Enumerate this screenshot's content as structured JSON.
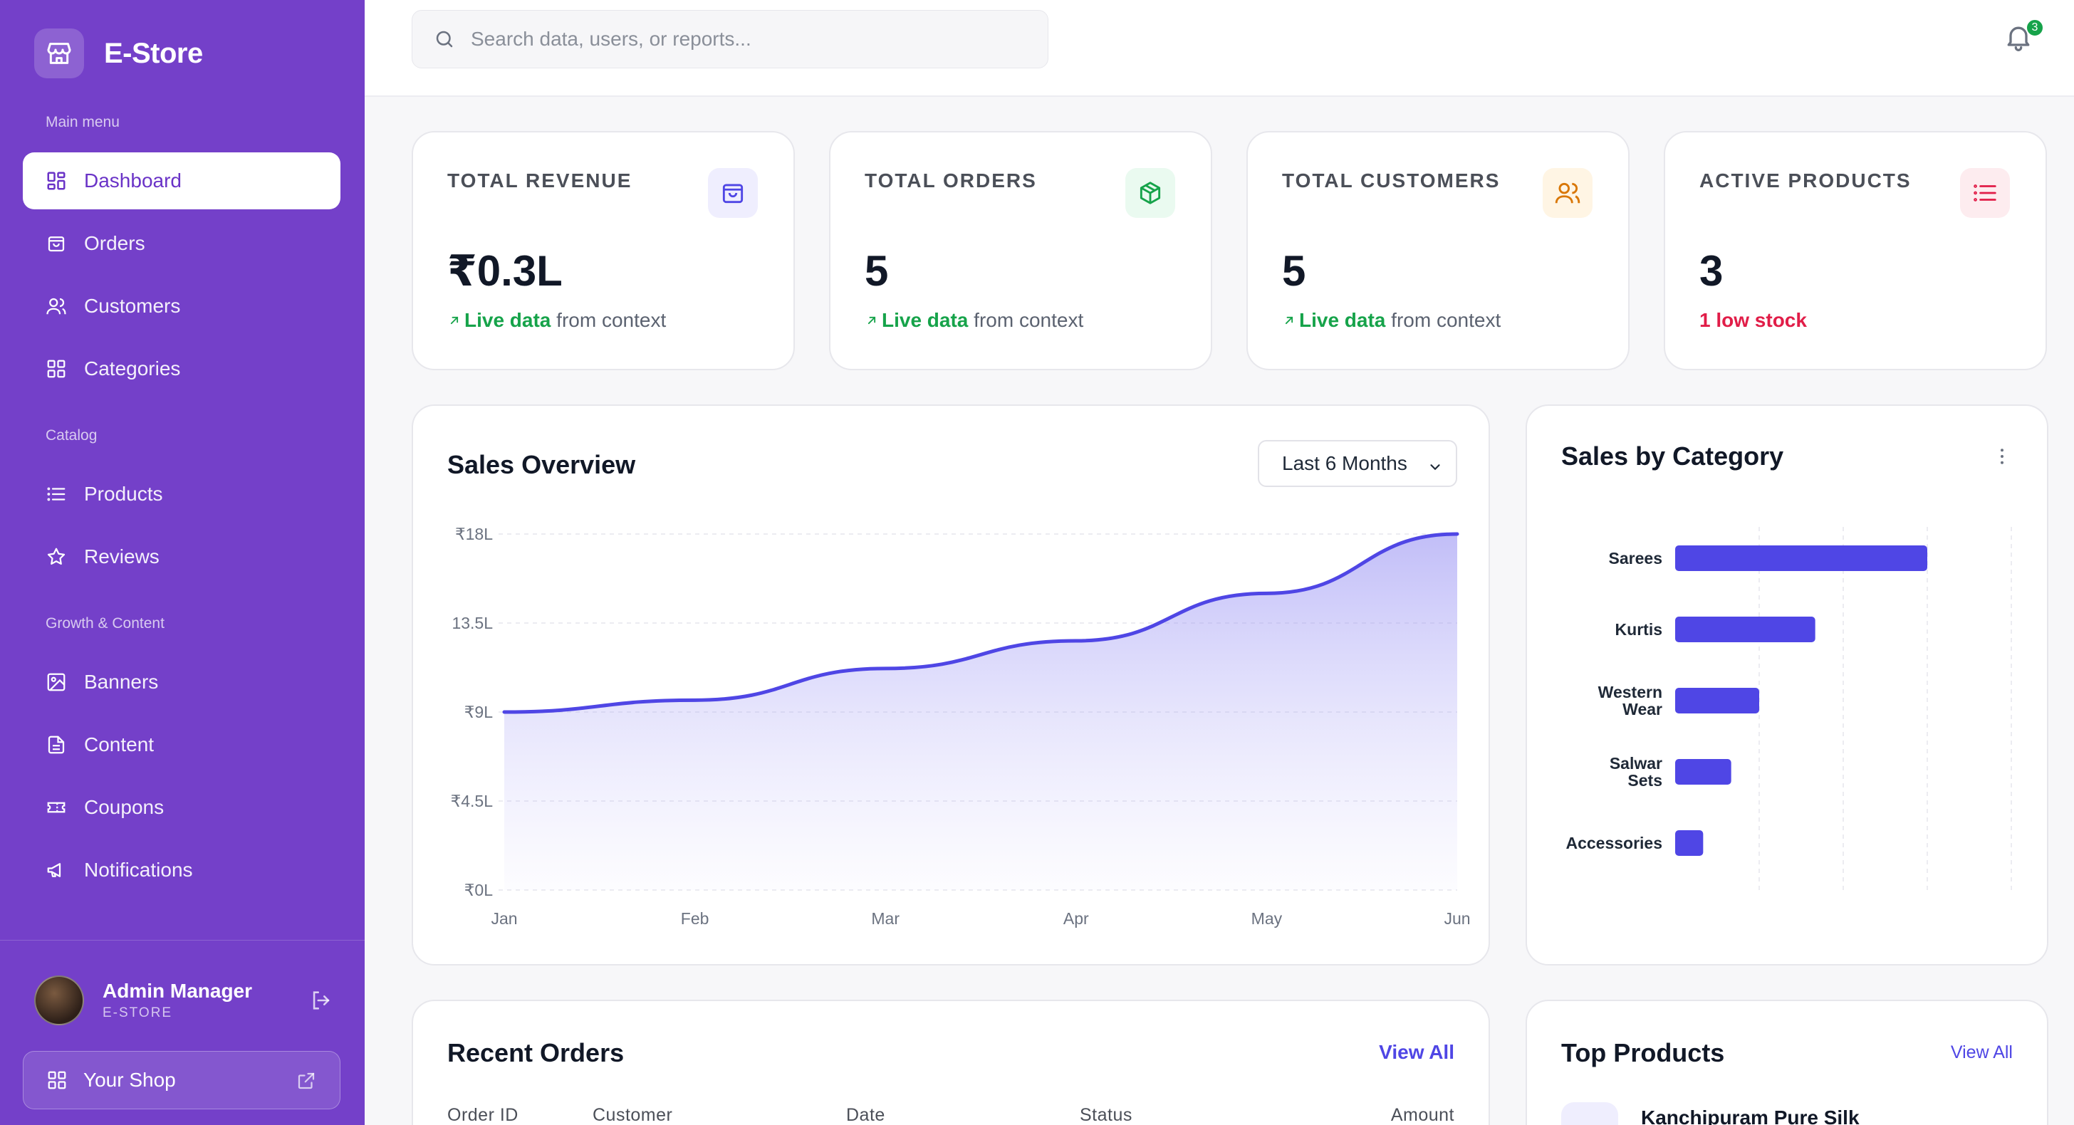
{
  "brand": {
    "name": "E-Store",
    "icon": "store-icon"
  },
  "sidebar": {
    "sections": [
      "Main menu",
      "Catalog",
      "Growth & Content"
    ],
    "items": [
      {
        "label": "Dashboard",
        "icon": "dashboard-icon",
        "active": true
      },
      {
        "label": "Orders",
        "icon": "shopping-bag-icon"
      },
      {
        "label": "Customers",
        "icon": "users-icon"
      },
      {
        "label": "Categories",
        "icon": "grid-icon"
      },
      {
        "label": "Products",
        "icon": "list-icon"
      },
      {
        "label": "Reviews",
        "icon": "star-icon"
      },
      {
        "label": "Banners",
        "icon": "image-icon"
      },
      {
        "label": "Content",
        "icon": "file-icon"
      },
      {
        "label": "Coupons",
        "icon": "ticket-icon"
      },
      {
        "label": "Notifications",
        "icon": "megaphone-icon"
      }
    ],
    "user": {
      "name": "Admin Manager",
      "role": "E-STORE"
    },
    "shop_button": "Your Shop"
  },
  "header": {
    "search_placeholder": "Search data, users, or reports...",
    "notification_count": "3"
  },
  "stats": [
    {
      "label": "TOTAL REVENUE",
      "value": "₹0.3L",
      "sub_highlight": "Live data",
      "sub_rest": " from context",
      "icon": "shopping-bag-icon",
      "accent": "#4f46e5",
      "accent_bg": "#efeefe"
    },
    {
      "label": "TOTAL ORDERS",
      "value": "5",
      "sub_highlight": "Live data",
      "sub_rest": " from context",
      "icon": "box-icon",
      "accent": "#16a34a",
      "accent_bg": "#eafaf0"
    },
    {
      "label": "TOTAL CUSTOMERS",
      "value": "5",
      "sub_highlight": "Live data",
      "sub_rest": " from context",
      "icon": "users-icon",
      "accent": "#d97706",
      "accent_bg": "#fff5e4"
    },
    {
      "label": "ACTIVE PRODUCTS",
      "value": "3",
      "sub_alert": "1 low stock",
      "icon": "list-icon",
      "accent": "#e11d48",
      "accent_bg": "#fdecef"
    }
  ],
  "sales_overview": {
    "title": "Sales Overview",
    "range_select": "Last 6 Months"
  },
  "sales_by_category": {
    "title": "Sales by Category"
  },
  "recent_orders": {
    "title": "Recent Orders",
    "view_all": "View All",
    "columns": [
      "Order ID",
      "Customer",
      "Date",
      "Status",
      "Amount"
    ]
  },
  "top_products": {
    "title": "Top Products",
    "view_all": "View All",
    "first_item": "Kanchipuram Pure Silk"
  },
  "chart_data": [
    {
      "type": "area",
      "x": [
        "Jan",
        "Feb",
        "Mar",
        "Apr",
        "May",
        "Jun"
      ],
      "series": [
        {
          "values": [
            9.0,
            9.6,
            11.2,
            12.6,
            15.0,
            18.0
          ]
        }
      ],
      "y_ticks": [
        "₹0L",
        "₹4.5L",
        "₹9L",
        "13.5L",
        "₹18L"
      ],
      "ylim": [
        0,
        18
      ],
      "grid": true,
      "colors": {
        "line": "#4f46e5",
        "fill": "#a5a0f5"
      }
    },
    {
      "type": "bar",
      "orientation": "horizontal",
      "categories": [
        "Sarees",
        "Kurtis",
        "Western Wear",
        "Salwar Sets",
        "Accessories"
      ],
      "values": [
        9,
        5,
        3,
        2,
        1
      ],
      "xlim": [
        0,
        12
      ],
      "grid": true,
      "colors": {
        "bar": "#4f46e5"
      }
    }
  ]
}
